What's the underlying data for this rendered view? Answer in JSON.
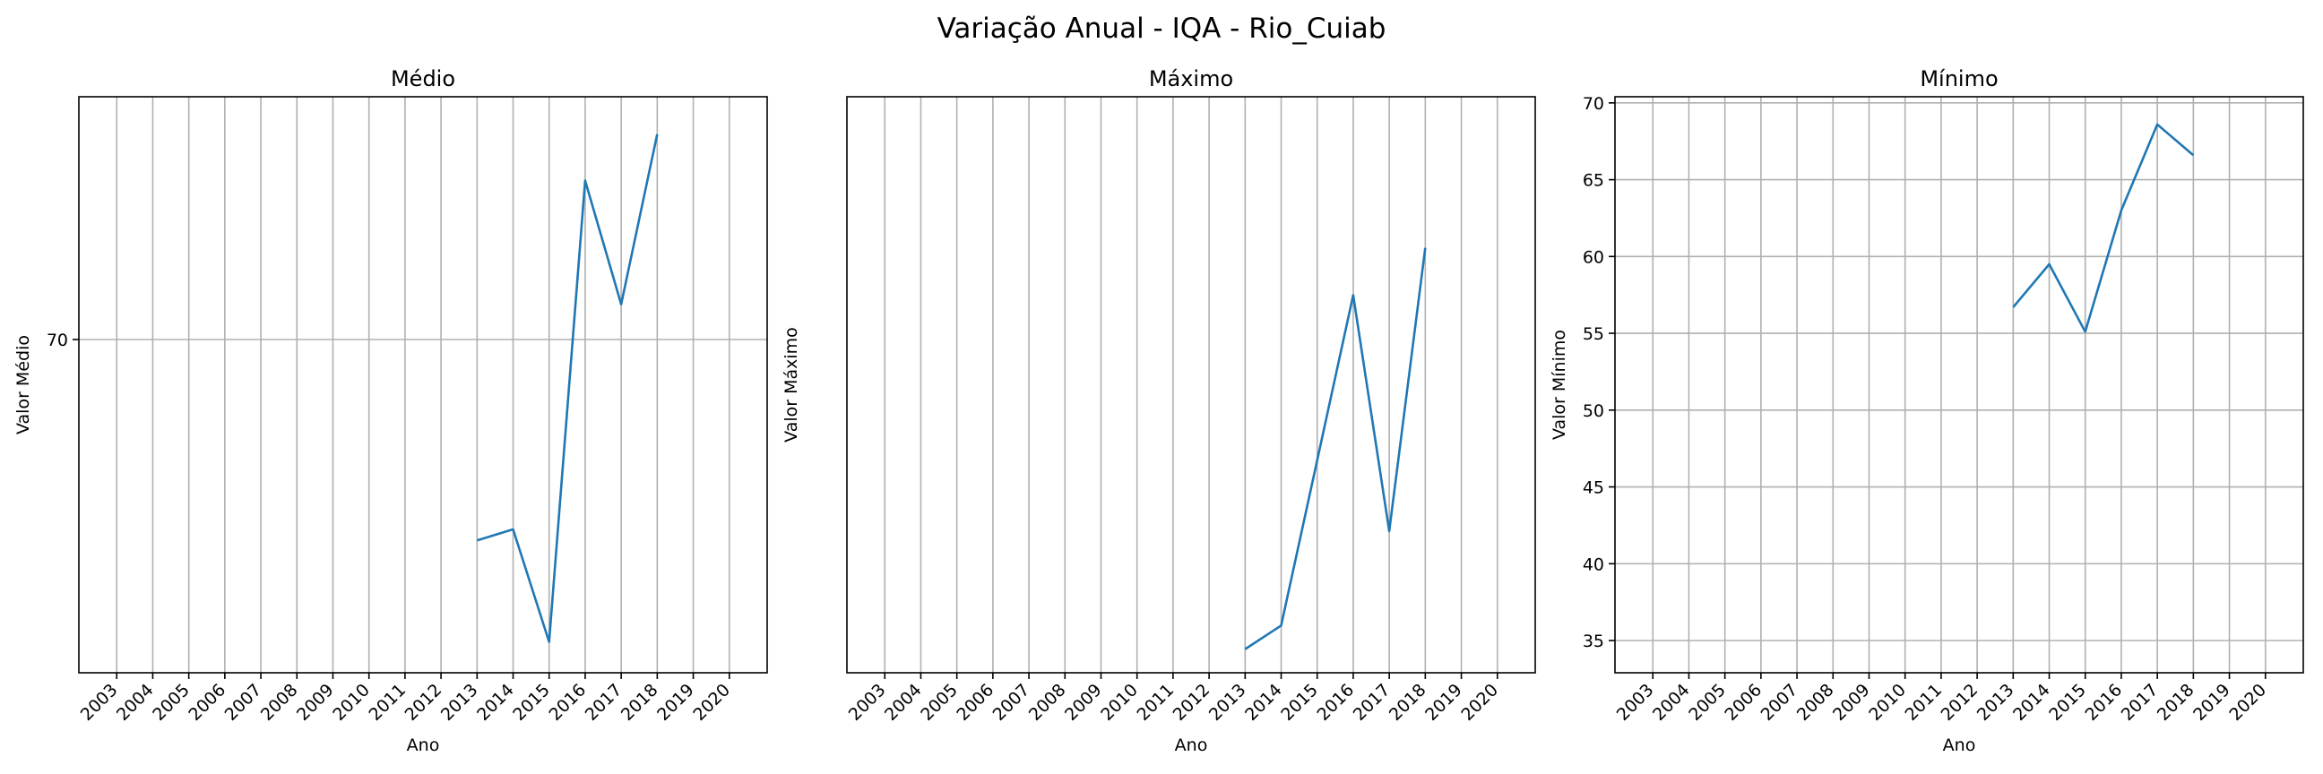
{
  "suptitle": "Variação Anual - IQA - Rio_Cuiab",
  "colors": {
    "series": "#1f77b4",
    "grid": "#b0b0b0"
  },
  "chart_data": [
    {
      "type": "line",
      "title": "Médio",
      "xlabel": "Ano",
      "ylabel": "Valor Médio",
      "grid": true,
      "categories": [
        "2003",
        "2004",
        "2005",
        "2006",
        "2007",
        "2008",
        "2009",
        "2010",
        "2011",
        "2012",
        "2013",
        "2014",
        "2015",
        "2016",
        "2017",
        "2018",
        "2019",
        "2020"
      ],
      "x": [
        "2013",
        "2014",
        "2015",
        "2016",
        "2017",
        "2018"
      ],
      "values": [
        60.9,
        61.4,
        56.3,
        77.2,
        71.6,
        79.3
      ],
      "ylim": [
        54.9,
        81.0
      ],
      "yticks": [
        70
      ],
      "ytick_labels": [
        "70"
      ]
    },
    {
      "type": "line",
      "title": "Máximo",
      "xlabel": "Ano",
      "ylabel": "Valor Máximo",
      "grid": false,
      "categories": [
        "2003",
        "2004",
        "2005",
        "2006",
        "2007",
        "2008",
        "2009",
        "2010",
        "2011",
        "2012",
        "2013",
        "2014",
        "2015",
        "2016",
        "2017",
        "2018",
        "2019",
        "2020"
      ],
      "x": [
        "2013",
        "2014",
        "2016",
        "2017",
        "2018"
      ],
      "values": [
        66.0,
        67.0,
        81.0,
        71.0,
        83.0
      ],
      "ylim": [
        65.0,
        89.4
      ],
      "yticks": [],
      "ytick_labels": []
    },
    {
      "type": "line",
      "title": "Mínimo",
      "xlabel": "Ano",
      "ylabel": "Valor Mínimo",
      "grid": true,
      "categories": [
        "2003",
        "2004",
        "2005",
        "2006",
        "2007",
        "2008",
        "2009",
        "2010",
        "2011",
        "2012",
        "2013",
        "2014",
        "2015",
        "2016",
        "2017",
        "2018",
        "2019",
        "2020"
      ],
      "x": [
        "2013",
        "2014",
        "2015",
        "2016",
        "2017",
        "2018"
      ],
      "values": [
        56.7,
        59.5,
        55.1,
        63.0,
        68.6,
        66.6
      ],
      "ylim": [
        32.9,
        70.4
      ],
      "yticks": [
        35,
        40,
        45,
        50,
        55,
        60,
        65,
        70
      ],
      "ytick_labels": [
        "35",
        "40",
        "45",
        "50",
        "55",
        "60",
        "65",
        "70"
      ]
    }
  ]
}
